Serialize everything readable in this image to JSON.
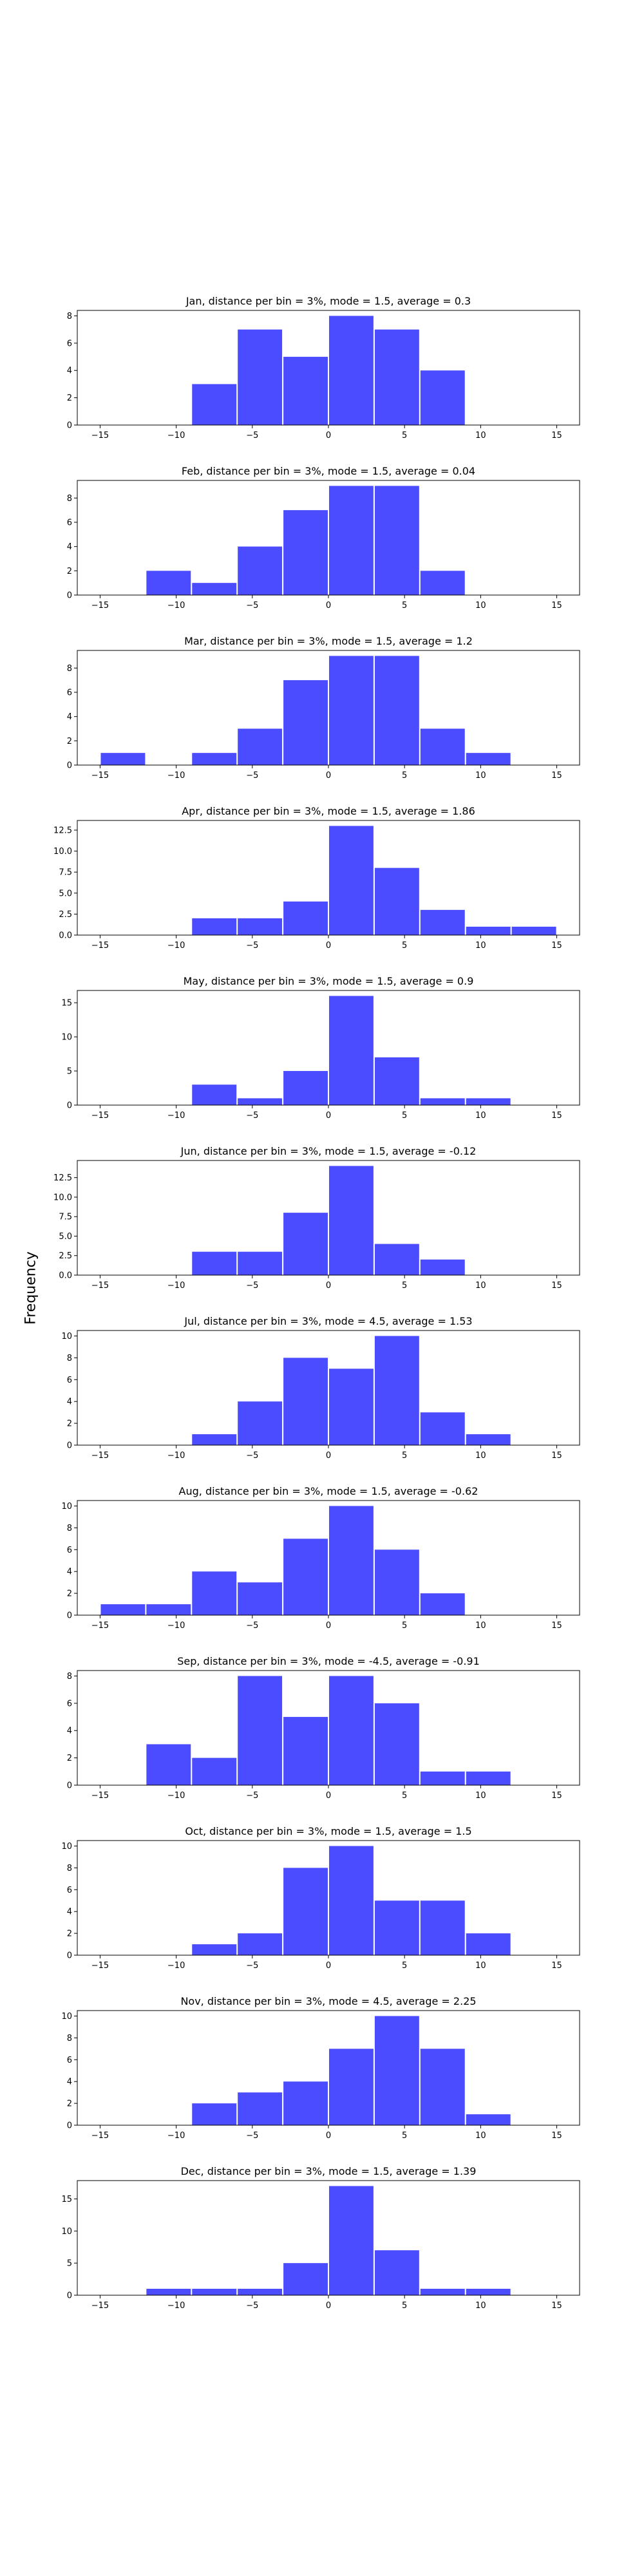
{
  "chart_data": {
    "type": "bar",
    "ylabel": "Frequency",
    "bin_width": 3,
    "xlim": [
      -16.5,
      16.5
    ],
    "xticks": [
      -15,
      -10,
      -5,
      0,
      5,
      10,
      15
    ],
    "bar_color": "#4b4bff",
    "bin_centers": [
      -13.5,
      -10.5,
      -7.5,
      -4.5,
      -1.5,
      1.5,
      4.5,
      7.5,
      10.5,
      13.5
    ],
    "panels": [
      {
        "title": "Jan, distance per bin = 3%, mode = 1.5, average = 0.3",
        "values": [
          0,
          0,
          3,
          7,
          5,
          8,
          7,
          4,
          0,
          0
        ],
        "ylim": [
          0,
          8.4
        ],
        "yticks": [
          "0",
          "2",
          "4",
          "6",
          "8"
        ],
        "ytick_values": [
          0,
          2,
          4,
          6,
          8
        ]
      },
      {
        "title": "Feb, distance per bin = 3%, mode = 1.5, average = 0.04",
        "values": [
          0,
          2,
          1,
          4,
          7,
          9,
          9,
          2,
          0,
          0
        ],
        "ylim": [
          0,
          9.45
        ],
        "yticks": [
          "0",
          "2",
          "4",
          "6",
          "8"
        ],
        "ytick_values": [
          0,
          2,
          4,
          6,
          8
        ]
      },
      {
        "title": "Mar, distance per bin = 3%, mode = 1.5, average = 1.2",
        "values": [
          1,
          0,
          1,
          3,
          7,
          9,
          9,
          3,
          1,
          0
        ],
        "ylim": [
          0,
          9.45
        ],
        "yticks": [
          "0",
          "2",
          "4",
          "6",
          "8"
        ],
        "ytick_values": [
          0,
          2,
          4,
          6,
          8
        ]
      },
      {
        "title": "Apr, distance per bin = 3%, mode = 1.5, average = 1.86",
        "values": [
          0,
          0,
          2,
          2,
          4,
          13,
          8,
          3,
          1,
          1
        ],
        "ylim": [
          0,
          13.65
        ],
        "yticks": [
          "0.0",
          "2.5",
          "5.0",
          "7.5",
          "10.0",
          "12.5"
        ],
        "ytick_values": [
          0,
          2.5,
          5,
          7.5,
          10,
          12.5
        ]
      },
      {
        "title": "May, distance per bin = 3%, mode = 1.5, average = 0.9",
        "values": [
          0,
          0,
          3,
          1,
          5,
          16,
          7,
          1,
          1,
          0
        ],
        "ylim": [
          0,
          16.8
        ],
        "yticks": [
          "0",
          "5",
          "10",
          "15"
        ],
        "ytick_values": [
          0,
          5,
          10,
          15
        ]
      },
      {
        "title": "Jun, distance per bin = 3%, mode = 1.5, average = -0.12",
        "values": [
          0,
          0,
          3,
          3,
          8,
          14,
          4,
          2,
          0,
          0
        ],
        "ylim": [
          0,
          14.7
        ],
        "yticks": [
          "0.0",
          "2.5",
          "5.0",
          "7.5",
          "10.0",
          "12.5"
        ],
        "ytick_values": [
          0,
          2.5,
          5,
          7.5,
          10,
          12.5
        ]
      },
      {
        "title": "Jul, distance per bin = 3%, mode = 4.5, average = 1.53",
        "values": [
          0,
          0,
          1,
          4,
          8,
          7,
          10,
          3,
          1,
          0
        ],
        "ylim": [
          0,
          10.5
        ],
        "yticks": [
          "0",
          "2",
          "4",
          "6",
          "8",
          "10"
        ],
        "ytick_values": [
          0,
          2,
          4,
          6,
          8,
          10
        ]
      },
      {
        "title": "Aug, distance per bin = 3%, mode = 1.5, average = -0.62",
        "values": [
          1,
          1,
          4,
          3,
          7,
          10,
          6,
          2,
          0,
          0
        ],
        "ylim": [
          0,
          10.5
        ],
        "yticks": [
          "0",
          "2",
          "4",
          "6",
          "8",
          "10"
        ],
        "ytick_values": [
          0,
          2,
          4,
          6,
          8,
          10
        ]
      },
      {
        "title": "Sep, distance per bin = 3%, mode = -4.5, average = -0.91",
        "values": [
          0,
          3,
          2,
          8,
          5,
          8,
          6,
          1,
          1,
          0
        ],
        "ylim": [
          0,
          8.4
        ],
        "yticks": [
          "0",
          "2",
          "4",
          "6",
          "8"
        ],
        "ytick_values": [
          0,
          2,
          4,
          6,
          8
        ]
      },
      {
        "title": "Oct, distance per bin = 3%, mode = 1.5, average = 1.5",
        "values": [
          0,
          0,
          1,
          2,
          8,
          10,
          5,
          5,
          2,
          0
        ],
        "ylim": [
          0,
          10.5
        ],
        "yticks": [
          "0",
          "2",
          "4",
          "6",
          "8",
          "10"
        ],
        "ytick_values": [
          0,
          2,
          4,
          6,
          8,
          10
        ]
      },
      {
        "title": "Nov, distance per bin = 3%, mode = 4.5, average = 2.25",
        "values": [
          0,
          0,
          2,
          3,
          4,
          7,
          10,
          7,
          1,
          0
        ],
        "ylim": [
          0,
          10.5
        ],
        "yticks": [
          "0",
          "2",
          "4",
          "6",
          "8",
          "10"
        ],
        "ytick_values": [
          0,
          2,
          4,
          6,
          8,
          10
        ]
      },
      {
        "title": "Dec, distance per bin = 3%, mode = 1.5, average = 1.39",
        "values": [
          0,
          1,
          1,
          1,
          5,
          17,
          7,
          1,
          1,
          0
        ],
        "ylim": [
          0,
          17.85
        ],
        "yticks": [
          "0",
          "5",
          "10",
          "15"
        ],
        "ytick_values": [
          0,
          5,
          10,
          15
        ]
      }
    ]
  }
}
